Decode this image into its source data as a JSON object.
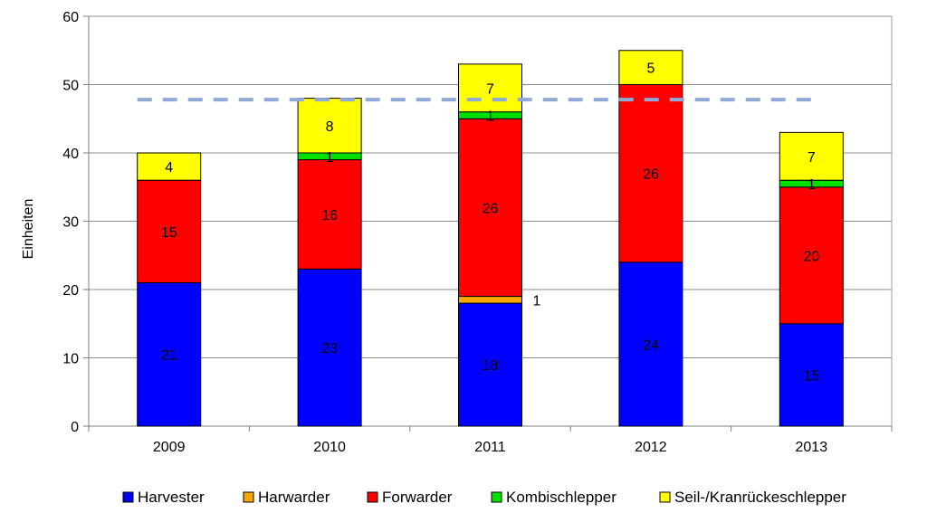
{
  "chart_data": {
    "type": "bar",
    "stacked": true,
    "categories": [
      "2009",
      "2010",
      "2011",
      "2012",
      "2013"
    ],
    "series": [
      {
        "name": "Harvester",
        "color": "#0000FF",
        "values": [
          21,
          23,
          18,
          24,
          15
        ]
      },
      {
        "name": "Harwarder",
        "color": "#F7A800",
        "values": [
          0,
          0,
          1,
          0,
          0
        ]
      },
      {
        "name": "Forwarder",
        "color": "#FF0000",
        "values": [
          15,
          16,
          26,
          26,
          20
        ]
      },
      {
        "name": "Kombischlepper",
        "color": "#00E000",
        "values": [
          0,
          1,
          1,
          0,
          1
        ]
      },
      {
        "name": "Seil-/Kranrückeschlepper",
        "color": "#FFFF00",
        "values": [
          4,
          8,
          7,
          5,
          7
        ]
      }
    ],
    "reference_line": {
      "value": 47.8,
      "color": "#8EA9D8",
      "style": "dashed"
    },
    "ylabel": "Einheiten",
    "xlabel": "",
    "ylim": [
      0,
      60
    ],
    "yticks": [
      0,
      10,
      20,
      30,
      40,
      50,
      60
    ],
    "grid": true,
    "legend_position": "bottom"
  }
}
